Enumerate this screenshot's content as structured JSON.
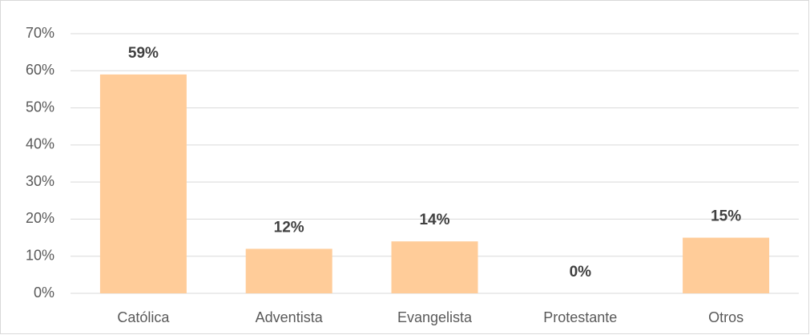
{
  "chart_data": {
    "type": "bar",
    "categories": [
      "Católica",
      "Adventista",
      "Evangelista",
      "Protestante",
      "Otros"
    ],
    "values": [
      59,
      12,
      14,
      0,
      15
    ],
    "value_labels": [
      "59%",
      "12%",
      "14%",
      "0%",
      "15%"
    ],
    "color": "#ffcc99",
    "ylim": [
      0,
      70
    ],
    "yticks": [
      {
        "value": 0,
        "label": "0%"
      },
      {
        "value": 10,
        "label": "10%"
      },
      {
        "value": 20,
        "label": "20%"
      },
      {
        "value": 30,
        "label": "30%"
      },
      {
        "value": 40,
        "label": "40%"
      },
      {
        "value": 50,
        "label": "50%"
      },
      {
        "value": 60,
        "label": "60%"
      },
      {
        "value": 70,
        "label": "70%"
      }
    ],
    "grid": true
  }
}
